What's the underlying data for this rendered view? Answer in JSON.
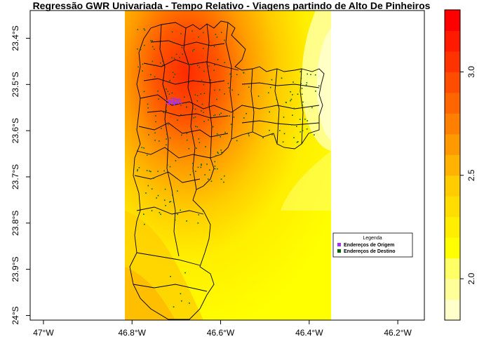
{
  "title": "Regressão GWR Univariada - Tempo Relativo - Viagens partindo de Alto De Pinheiros",
  "legend": {
    "title": "Legenda",
    "items": [
      {
        "label": "Endereços de Origem",
        "color": "#9b30ff"
      },
      {
        "label": "Endereços de Destino",
        "color": "#006400"
      }
    ]
  },
  "chart_data": {
    "type": "heatmap",
    "x_axis": {
      "ticks": [
        -47.0,
        -46.8,
        -46.6,
        -46.4,
        -46.2
      ],
      "tick_labels": [
        "47°W",
        "46.8°W",
        "46.6°W",
        "46.4°W",
        "46.2°W"
      ],
      "range": [
        -47.03,
        -46.14
      ]
    },
    "y_axis": {
      "ticks": [
        -23.4,
        -23.5,
        -23.6,
        -23.7,
        -23.8,
        -23.9,
        -24.0
      ],
      "tick_labels": [
        "23.4°S",
        "23.5°S",
        "23.6°S",
        "23.7°S",
        "23.8°S",
        "23.9°S",
        "24°S"
      ],
      "range": [
        -24.01,
        -23.34
      ]
    },
    "raster_extent": {
      "lon": [
        -46.83,
        -46.35
      ],
      "lat": [
        -24.01,
        -23.34
      ]
    },
    "colorbar": {
      "range": [
        1.8,
        3.3
      ],
      "ticks": [
        2.0,
        2.5,
        3.0
      ],
      "tick_labels": [
        "2.0",
        "2.5",
        "3.0"
      ],
      "colors": [
        "#ffffcc",
        "#ffff99",
        "#ffff66",
        "#ffff00",
        "#ffee00",
        "#ffdd00",
        "#ffcc00",
        "#ffb300",
        "#ff9900",
        "#ff8000",
        "#ff6600",
        "#ff4d00",
        "#ff3300",
        "#ff1a00",
        "#ff0000"
      ]
    }
  }
}
